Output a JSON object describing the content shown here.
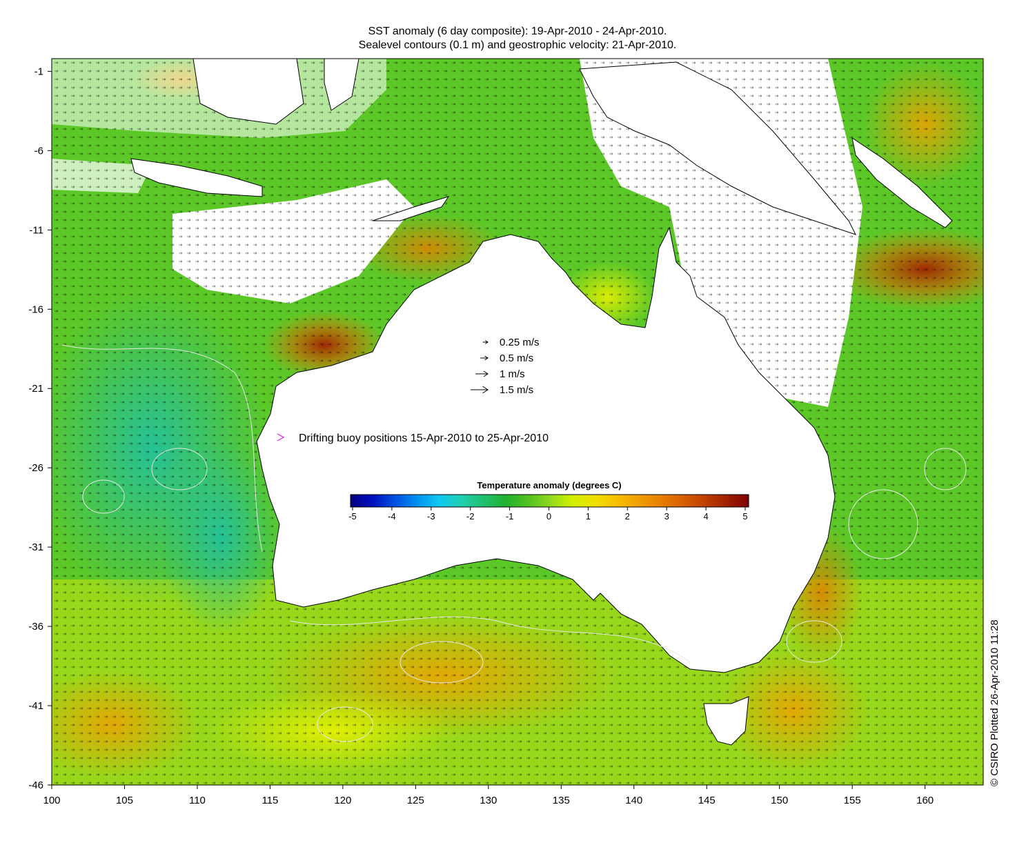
{
  "title": {
    "line1": "SST anomaly (6 day composite): 19-Apr-2010 - 24-Apr-2010.",
    "line2": "Sealevel contours (0.1 m) and geostrophic velocity: 21-Apr-2010."
  },
  "axes": {
    "x_ticks": [
      "100",
      "105",
      "110",
      "115",
      "120",
      "125",
      "130",
      "135",
      "140",
      "145",
      "150",
      "155",
      "160"
    ],
    "y_ticks": [
      "-1",
      "-6",
      "-11",
      "-16",
      "-21",
      "-26",
      "-31",
      "-36",
      "-41",
      "-46"
    ],
    "lon_range": [
      100,
      164
    ],
    "lat_range": [
      -46,
      -0.2
    ]
  },
  "velocity_legend": [
    {
      "label": "0.25 m/s",
      "speed": 0.25
    },
    {
      "label": "0.5 m/s",
      "speed": 0.5
    },
    {
      "label": "1 m/s",
      "speed": 1
    },
    {
      "label": "1.5 m/s",
      "speed": 1.5
    }
  ],
  "buoy_legend": {
    "label": "Drifting buoy positions 15-Apr-2010 to 25-Apr-2010",
    "color": "#e020e0"
  },
  "colorbar": {
    "title": "Temperature anomaly (degrees C)",
    "ticks": [
      "-5",
      "-4",
      "-3",
      "-2",
      "-1",
      "0",
      "1",
      "2",
      "3",
      "4",
      "5"
    ],
    "range": [
      -5,
      5
    ],
    "colors": [
      "#00007f",
      "#0010c0",
      "#0050e0",
      "#0090f0",
      "#10c8f0",
      "#20d0b0",
      "#20c070",
      "#20b030",
      "#50c020",
      "#90d820",
      "#d0f000",
      "#f0e000",
      "#f8c000",
      "#f0a000",
      "#e88000",
      "#d86000",
      "#c04000",
      "#a02000",
      "#800000"
    ]
  },
  "credit": "© CSIRO Plotted 26-Apr-2010 11:28",
  "colors": {
    "land": "#ffffff",
    "coast": "#000000",
    "contour": "#e8e8e8",
    "arrow": "#000000"
  }
}
